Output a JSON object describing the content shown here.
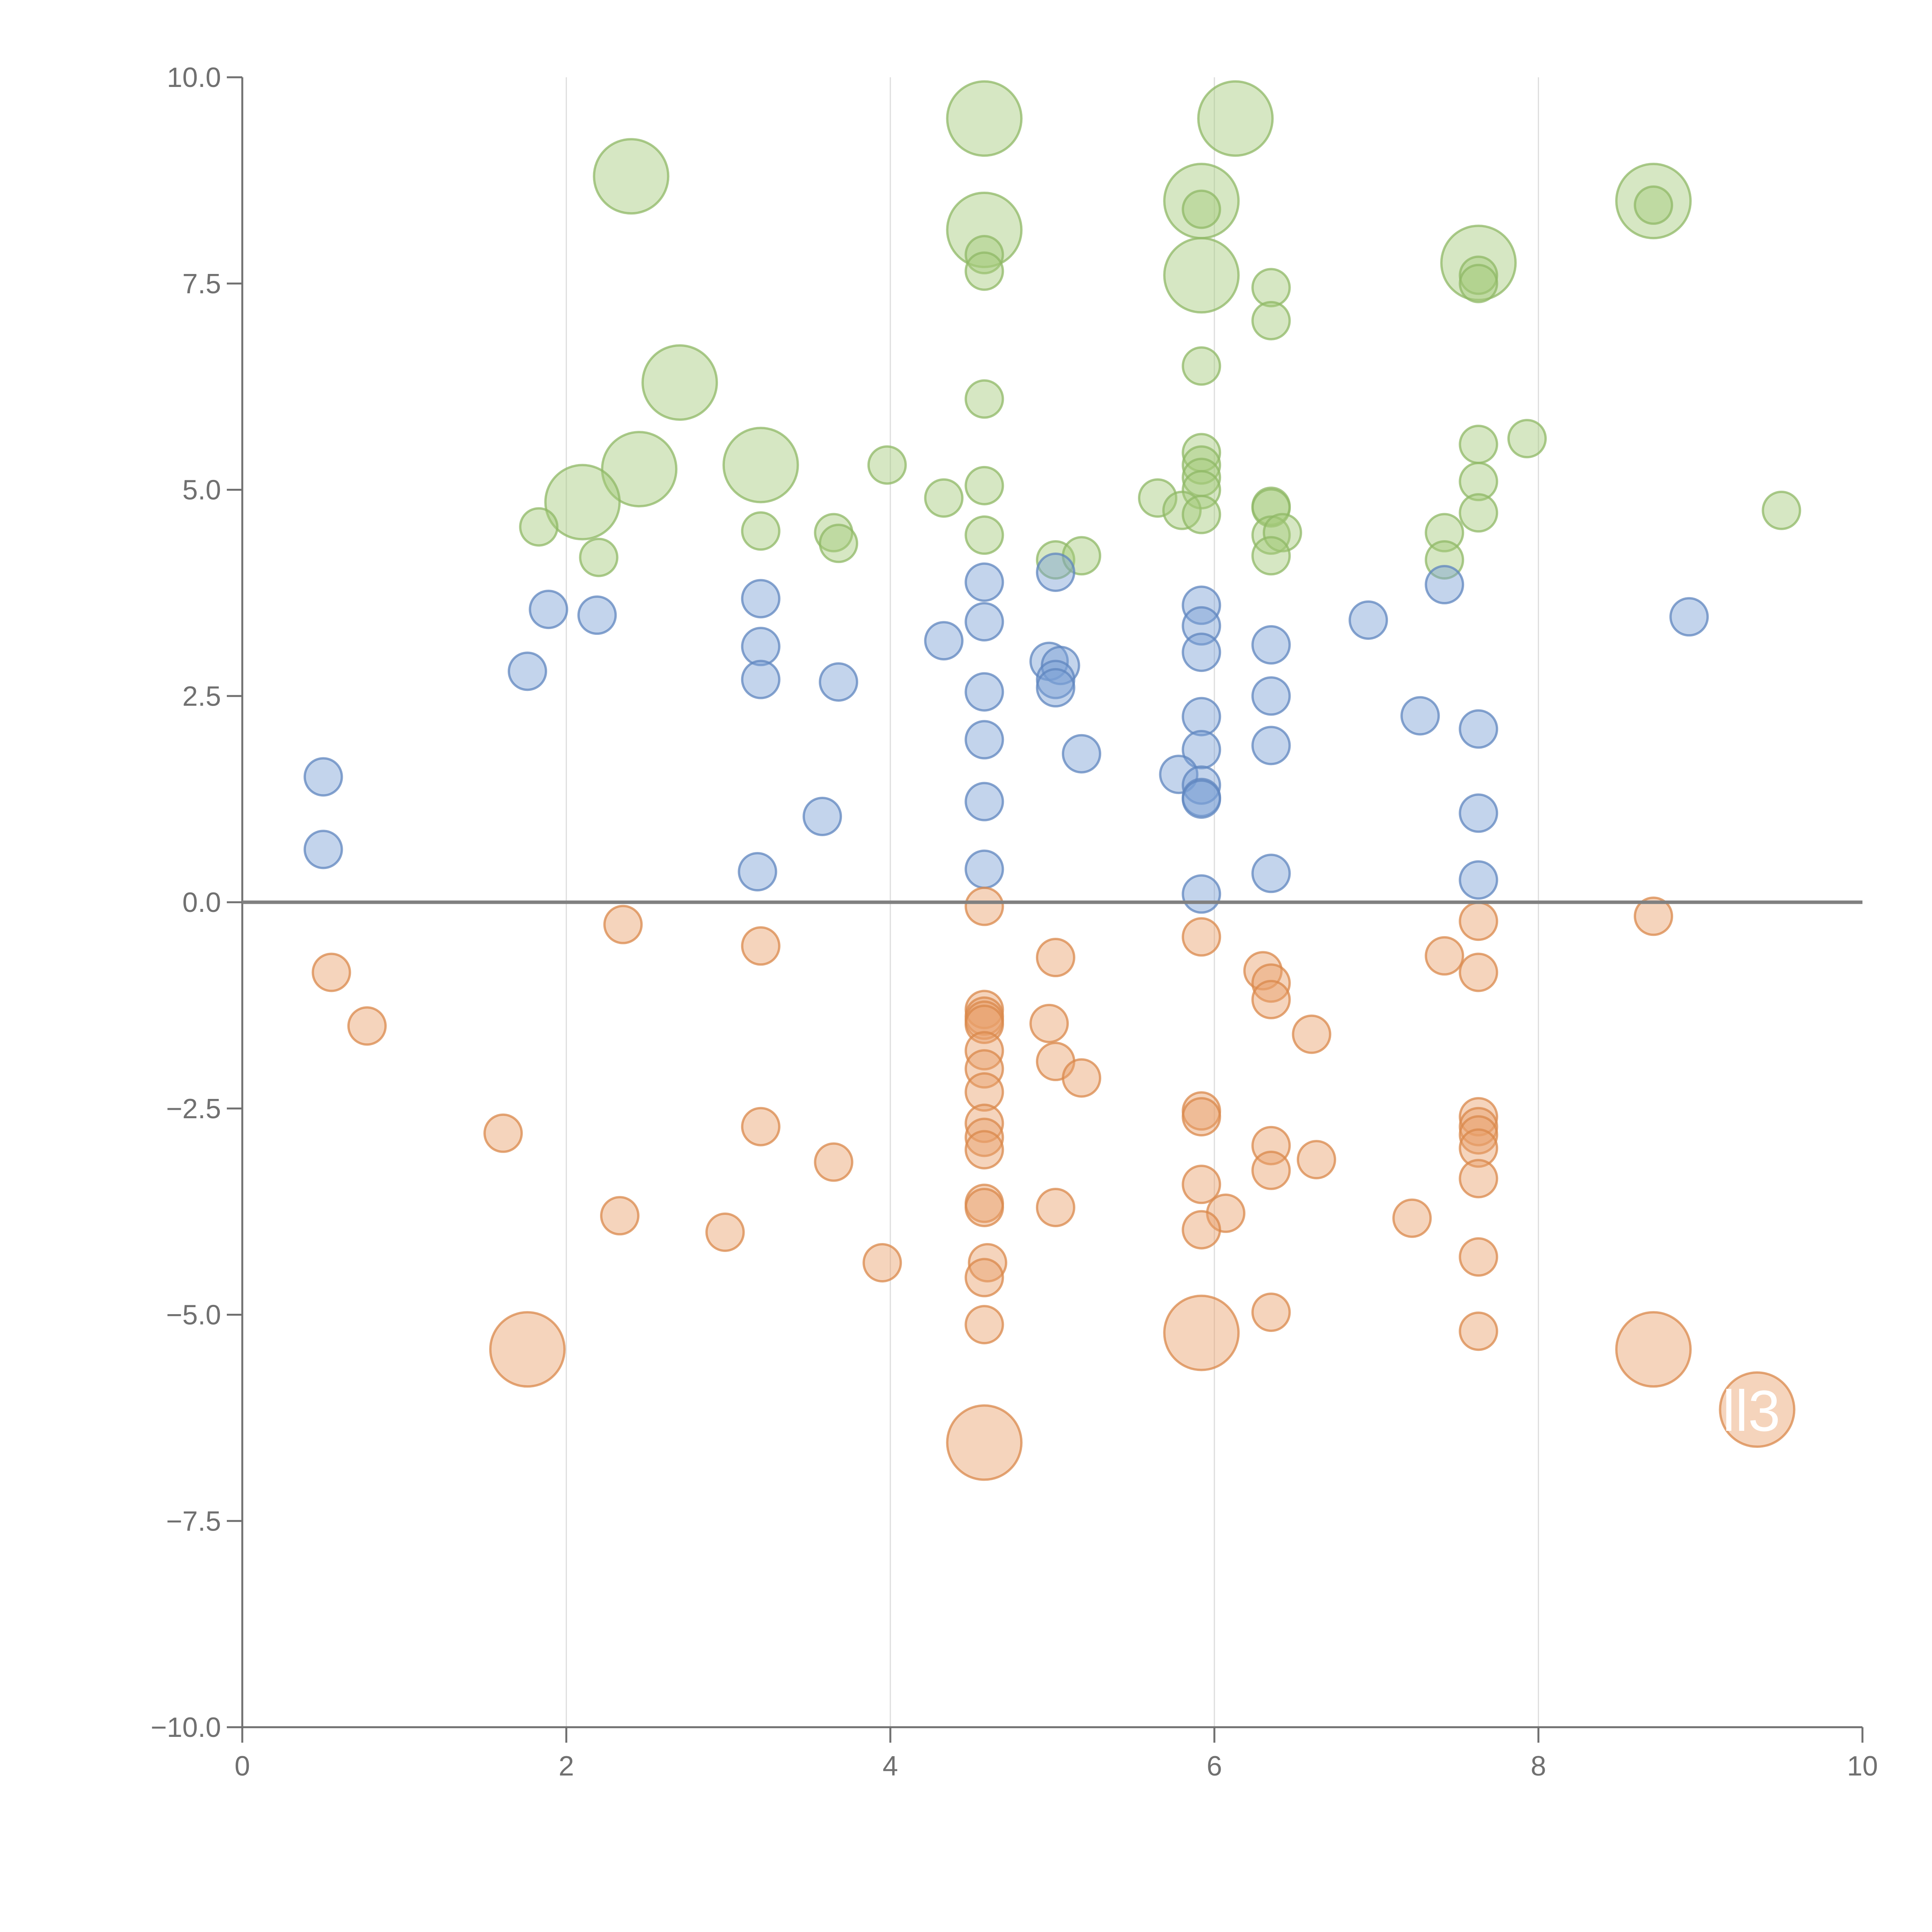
{
  "chart_data": {
    "type": "scatter",
    "title": "",
    "xlabel": "",
    "ylabel": "",
    "xlim": [
      0,
      10
    ],
    "ylim": [
      -10,
      10
    ],
    "grid": "vertical",
    "x_ticks": [
      "0",
      "2",
      "4",
      "6",
      "8",
      "10"
    ],
    "x_tick_values": [
      0,
      2,
      4,
      6,
      8,
      10
    ],
    "y_ticks": [
      "10.0",
      "7.5",
      "5.0",
      "2.5",
      "0.0",
      "−2.5",
      "−5.0",
      "−7.5",
      "−10.0"
    ],
    "y_tick_values": [
      10,
      7.5,
      5,
      2.5,
      0,
      -2.5,
      -5,
      -7.5,
      -10
    ],
    "reference_line_y": 0,
    "colors": {
      "green": "#a5c97a",
      "green_stroke": "#8fb866",
      "blue": "#7aa0d4",
      "blue_stroke": "#5f86bf",
      "orange": "#e8a06a",
      "orange_stroke": "#d9884b",
      "axis": "#707070",
      "grid": "#dddddd",
      "zero_line": "#808080"
    },
    "series": [
      {
        "name": "green",
        "color": "#a5c97a",
        "points": [
          [
            2.4,
            8.8,
            1.4
          ],
          [
            4.58,
            9.5,
            1.4
          ],
          [
            6.13,
            9.5,
            1.4
          ],
          [
            5.92,
            8.5,
            1.4
          ],
          [
            8.71,
            8.5,
            1.4
          ],
          [
            4.58,
            8.15,
            1.4
          ],
          [
            5.92,
            7.6,
            1.4
          ],
          [
            7.63,
            7.75,
            1.4
          ],
          [
            2.7,
            6.3,
            1.4
          ],
          [
            3.2,
            5.3,
            1.4
          ],
          [
            2.45,
            5.25,
            1.4
          ],
          [
            2.1,
            4.85,
            1.4
          ],
          [
            5.92,
            8.4,
            0.7
          ],
          [
            8.71,
            8.45,
            0.7
          ],
          [
            4.58,
            7.85,
            0.7
          ],
          [
            4.58,
            7.65,
            0.7
          ],
          [
            6.35,
            7.45,
            0.7
          ],
          [
            6.35,
            7.05,
            0.7
          ],
          [
            7.63,
            7.6,
            0.7
          ],
          [
            7.63,
            7.5,
            0.7
          ],
          [
            5.92,
            6.5,
            0.7
          ],
          [
            4.58,
            6.1,
            0.7
          ],
          [
            7.63,
            5.55,
            0.7
          ],
          [
            7.93,
            5.62,
            0.7
          ],
          [
            3.98,
            5.3,
            0.7
          ],
          [
            5.92,
            5.45,
            0.7
          ],
          [
            5.92,
            5.3,
            0.7
          ],
          [
            5.92,
            5.15,
            0.7
          ],
          [
            4.58,
            5.05,
            0.7
          ],
          [
            5.92,
            5.0,
            0.7
          ],
          [
            7.63,
            5.1,
            0.7
          ],
          [
            4.33,
            4.9,
            0.7
          ],
          [
            5.65,
            4.9,
            0.7
          ],
          [
            6.35,
            4.8,
            0.7
          ],
          [
            6.35,
            4.78,
            0.7
          ],
          [
            7.63,
            4.72,
            0.7
          ],
          [
            5.8,
            4.75,
            0.7
          ],
          [
            5.92,
            4.7,
            0.7
          ],
          [
            9.5,
            4.75,
            0.7
          ],
          [
            1.83,
            4.55,
            0.7
          ],
          [
            3.2,
            4.5,
            0.7
          ],
          [
            3.65,
            4.48,
            0.7
          ],
          [
            4.58,
            4.45,
            0.7
          ],
          [
            6.35,
            4.45,
            0.7
          ],
          [
            6.42,
            4.48,
            0.7
          ],
          [
            7.42,
            4.48,
            0.7
          ],
          [
            3.68,
            4.35,
            0.7
          ],
          [
            2.2,
            4.18,
            0.7
          ],
          [
            5.02,
            4.15,
            0.7
          ],
          [
            5.18,
            4.2,
            0.7
          ],
          [
            6.35,
            4.2,
            0.7
          ],
          [
            7.42,
            4.15,
            0.7
          ]
        ]
      },
      {
        "name": "blue",
        "color": "#7aa0d4",
        "points": [
          [
            1.89,
            3.55,
            0.7
          ],
          [
            2.19,
            3.48,
            0.7
          ],
          [
            3.2,
            3.68,
            0.7
          ],
          [
            4.58,
            3.88,
            0.7
          ],
          [
            5.02,
            4.0,
            0.7
          ],
          [
            7.42,
            3.85,
            0.7
          ],
          [
            5.92,
            3.6,
            0.7
          ],
          [
            5.92,
            3.35,
            0.7
          ],
          [
            4.58,
            3.4,
            0.7
          ],
          [
            6.95,
            3.42,
            0.7
          ],
          [
            8.93,
            3.46,
            0.7
          ],
          [
            1.76,
            2.8,
            0.7
          ],
          [
            3.2,
            3.1,
            0.7
          ],
          [
            4.33,
            3.17,
            0.7
          ],
          [
            6.35,
            3.12,
            0.7
          ],
          [
            5.92,
            3.03,
            0.7
          ],
          [
            4.98,
            2.92,
            0.7
          ],
          [
            5.05,
            2.87,
            0.7
          ],
          [
            5.02,
            2.7,
            0.7
          ],
          [
            5.02,
            2.6,
            0.7
          ],
          [
            3.2,
            2.7,
            0.7
          ],
          [
            3.68,
            2.67,
            0.7
          ],
          [
            4.58,
            2.55,
            0.7
          ],
          [
            6.35,
            2.5,
            0.7
          ],
          [
            7.27,
            2.26,
            0.7
          ],
          [
            5.92,
            2.25,
            0.7
          ],
          [
            7.63,
            2.1,
            0.7
          ],
          [
            4.58,
            1.97,
            0.7
          ],
          [
            6.35,
            1.9,
            0.7
          ],
          [
            5.92,
            1.85,
            0.7
          ],
          [
            5.18,
            1.8,
            0.7
          ],
          [
            0.5,
            1.52,
            0.7
          ],
          [
            5.78,
            1.55,
            0.7
          ],
          [
            5.92,
            1.42,
            0.7
          ],
          [
            5.92,
            1.27,
            0.7
          ],
          [
            5.92,
            1.25,
            0.7
          ],
          [
            4.58,
            1.22,
            0.7
          ],
          [
            3.58,
            1.04,
            0.7
          ],
          [
            7.63,
            1.08,
            0.7
          ],
          [
            0.5,
            0.64,
            0.7
          ],
          [
            4.58,
            0.4,
            0.7
          ],
          [
            3.18,
            0.37,
            0.7
          ],
          [
            6.35,
            0.35,
            0.7
          ],
          [
            7.63,
            0.27,
            0.7
          ],
          [
            5.92,
            0.1,
            0.7
          ]
        ]
      },
      {
        "name": "orange",
        "color": "#e8a06a",
        "points": [
          [
            4.58,
            -0.05,
            0.7
          ],
          [
            2.35,
            -0.27,
            0.7
          ],
          [
            3.2,
            -0.53,
            0.7
          ],
          [
            5.92,
            -0.42,
            0.7
          ],
          [
            7.63,
            -0.23,
            0.7
          ],
          [
            8.71,
            -0.17,
            0.7
          ],
          [
            5.02,
            -0.67,
            0.7
          ],
          [
            7.42,
            -0.65,
            0.7
          ],
          [
            0.55,
            -0.85,
            0.7
          ],
          [
            6.3,
            -0.83,
            0.7
          ],
          [
            7.63,
            -0.85,
            0.7
          ],
          [
            6.35,
            -0.98,
            0.7
          ],
          [
            6.35,
            -1.18,
            0.7
          ],
          [
            4.58,
            -1.3,
            0.7
          ],
          [
            4.58,
            -1.38,
            0.7
          ],
          [
            4.58,
            -1.43,
            0.7
          ],
          [
            4.58,
            -1.48,
            0.7
          ],
          [
            4.98,
            -1.47,
            0.7
          ],
          [
            0.77,
            -1.5,
            0.7
          ],
          [
            6.6,
            -1.6,
            0.7
          ],
          [
            4.58,
            -1.8,
            0.7
          ],
          [
            5.02,
            -1.93,
            0.7
          ],
          [
            4.58,
            -2.02,
            0.7
          ],
          [
            5.18,
            -2.13,
            0.7
          ],
          [
            4.58,
            -2.3,
            0.7
          ],
          [
            5.92,
            -2.53,
            0.7
          ],
          [
            5.92,
            -2.6,
            0.7
          ],
          [
            7.63,
            -2.6,
            0.7
          ],
          [
            7.63,
            -2.72,
            0.7
          ],
          [
            7.63,
            -2.82,
            0.7
          ],
          [
            4.58,
            -2.68,
            0.7
          ],
          [
            3.2,
            -2.72,
            0.7
          ],
          [
            1.61,
            -2.8,
            0.7
          ],
          [
            4.58,
            -2.85,
            0.7
          ],
          [
            4.58,
            -3.0,
            0.7
          ],
          [
            6.35,
            -2.95,
            0.7
          ],
          [
            7.63,
            -2.98,
            0.7
          ],
          [
            3.65,
            -3.15,
            0.7
          ],
          [
            6.63,
            -3.12,
            0.7
          ],
          [
            6.35,
            -3.25,
            0.7
          ],
          [
            7.63,
            -3.35,
            0.7
          ],
          [
            5.92,
            -3.42,
            0.7
          ],
          [
            4.58,
            -3.65,
            0.7
          ],
          [
            4.58,
            -3.7,
            0.7
          ],
          [
            5.02,
            -3.7,
            0.7
          ],
          [
            6.07,
            -3.77,
            0.7
          ],
          [
            2.33,
            -3.8,
            0.7
          ],
          [
            7.22,
            -3.83,
            0.7
          ],
          [
            2.98,
            -4.0,
            0.7
          ],
          [
            5.92,
            -3.97,
            0.7
          ],
          [
            7.63,
            -4.3,
            0.7
          ],
          [
            3.95,
            -4.37,
            0.7
          ],
          [
            4.6,
            -4.37,
            0.7
          ],
          [
            4.58,
            -4.55,
            0.7
          ],
          [
            6.35,
            -4.97,
            0.7
          ],
          [
            4.58,
            -5.12,
            0.7
          ],
          [
            7.63,
            -5.2,
            0.7
          ],
          [
            1.76,
            -5.42,
            1.4
          ],
          [
            5.92,
            -5.22,
            1.4
          ],
          [
            8.71,
            -5.42,
            1.4
          ],
          [
            4.58,
            -6.55,
            1.4
          ],
          [
            9.35,
            -6.15,
            1.4
          ]
        ]
      }
    ],
    "annotations": [
      {
        "text": "ll3",
        "x": 9.35,
        "y": -6.15
      }
    ]
  }
}
